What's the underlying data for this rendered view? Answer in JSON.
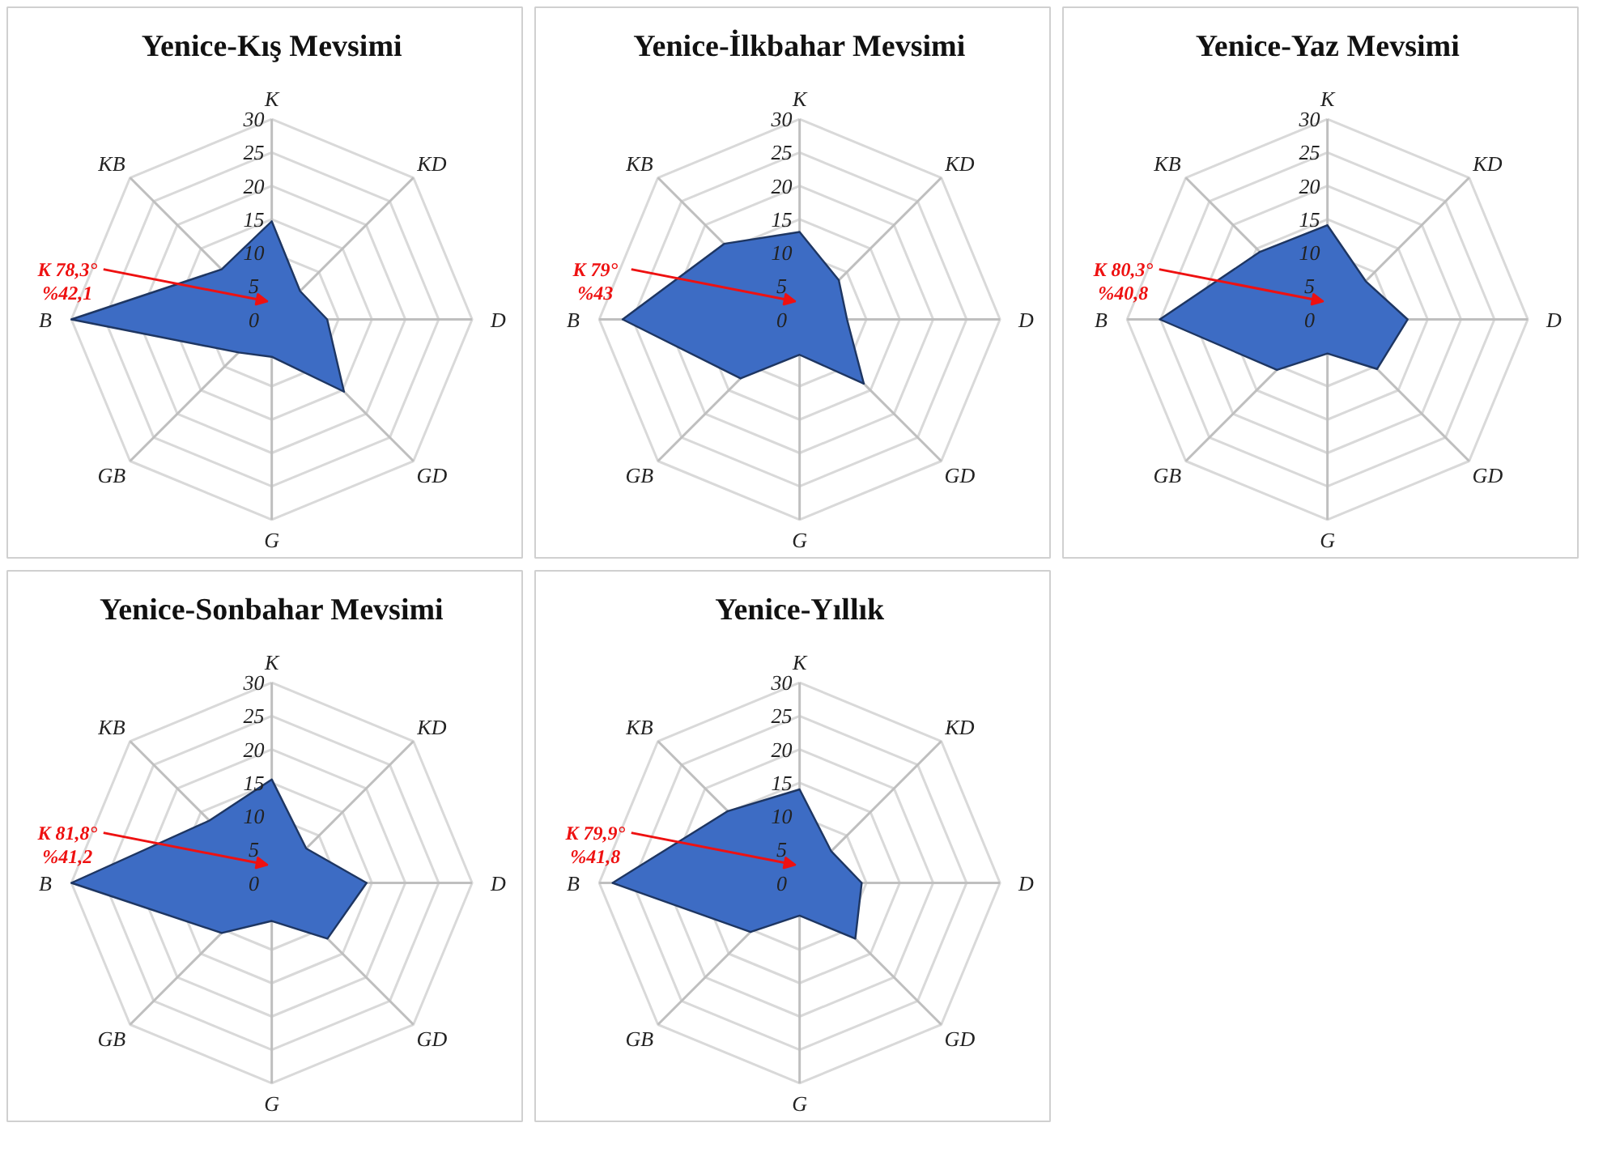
{
  "chart_data": [
    {
      "type": "radar",
      "title": "Yenice-Kış Mevsimi",
      "categories": [
        "K",
        "KD",
        "D",
        "GD",
        "G",
        "GB",
        "B",
        "KB"
      ],
      "ylim": [
        0,
        30
      ],
      "yticks": [
        0,
        5,
        10,
        15,
        20,
        25,
        30
      ],
      "grid": true,
      "annotations": [
        "K 78,3°",
        "%42,1"
      ],
      "series": [
        {
          "color": "#3d6cc4",
          "values": [
            14.7,
            6,
            8.3,
            15.3,
            5.6,
            7,
            30,
            10.6
          ]
        }
      ]
    },
    {
      "type": "radar",
      "title": "Yenice-İlkbahar Mevsimi",
      "categories": [
        "K",
        "KD",
        "D",
        "GD",
        "G",
        "GB",
        "B",
        "KB"
      ],
      "ylim": [
        0,
        30
      ],
      "yticks": [
        0,
        5,
        10,
        15,
        20,
        25,
        30
      ],
      "grid": true,
      "annotations": [
        "K 79°",
        "%43"
      ],
      "series": [
        {
          "color": "#3d6cc4",
          "values": [
            13.1,
            8.3,
            7.1,
            13.6,
            5.3,
            12.5,
            26.5,
            16
          ]
        }
      ]
    },
    {
      "type": "radar",
      "title": "Yenice-Yaz Mevsimi",
      "categories": [
        "K",
        "KD",
        "D",
        "GD",
        "G",
        "GB",
        "B",
        "KB"
      ],
      "ylim": [
        0,
        30
      ],
      "yticks": [
        0,
        5,
        10,
        15,
        20,
        25,
        30
      ],
      "grid": true,
      "annotations": [
        "K 80,3°",
        "%40,8"
      ],
      "series": [
        {
          "color": "#3d6cc4",
          "values": [
            14.1,
            8.1,
            12,
            10.5,
            5.1,
            10.7,
            25.1,
            14.3
          ]
        }
      ]
    },
    {
      "type": "radar",
      "title": "Yenice-Sonbahar Mevsimi",
      "categories": [
        "K",
        "KD",
        "D",
        "GD",
        "G",
        "GB",
        "B",
        "KB"
      ],
      "ylim": [
        0,
        30
      ],
      "yticks": [
        0,
        5,
        10,
        15,
        20,
        25,
        30
      ],
      "grid": true,
      "annotations": [
        "K 81,8°",
        "%41,2"
      ],
      "series": [
        {
          "color": "#3d6cc4",
          "values": [
            15.5,
            7.3,
            14.2,
            11.8,
            5.7,
            10.6,
            30,
            13.2
          ]
        }
      ]
    },
    {
      "type": "radar",
      "title": "Yenice-Yıllık",
      "categories": [
        "K",
        "KD",
        "D",
        "GD",
        "G",
        "GB",
        "B",
        "KB"
      ],
      "ylim": [
        0,
        30
      ],
      "yticks": [
        0,
        5,
        10,
        15,
        20,
        25,
        30
      ],
      "grid": true,
      "annotations": [
        "K 79,9°",
        "%41,8"
      ],
      "series": [
        {
          "color": "#3d6cc4",
          "values": [
            14,
            6.7,
            9.3,
            11.8,
            4.9,
            10.4,
            28,
            15.2
          ]
        }
      ]
    }
  ]
}
